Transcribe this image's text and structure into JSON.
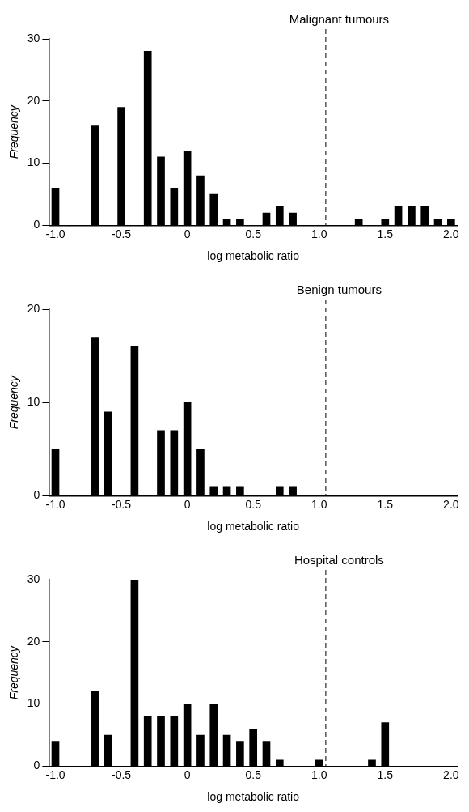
{
  "chart_data": [
    {
      "type": "bar",
      "title": "Malignant tumours",
      "xlabel": "log metabolic ratio",
      "ylabel": "Frequency",
      "x": [
        -1.0,
        -0.7,
        -0.5,
        -0.3,
        -0.2,
        -0.1,
        0,
        0.1,
        0.2,
        0.3,
        0.4,
        0.6,
        0.7,
        0.8,
        1.3,
        1.5,
        1.6,
        1.7,
        1.8,
        1.9,
        2.0
      ],
      "values": [
        6,
        16,
        19,
        28,
        11,
        6,
        12,
        8,
        5,
        1,
        1,
        2,
        3,
        2,
        1,
        1,
        3,
        3,
        3,
        1,
        1
      ],
      "color": "#000000",
      "xlim": [
        -1.05,
        2.05
      ],
      "xticks": [
        {
          "value": -1,
          "label": "-1.0"
        },
        -0.5,
        0,
        0.5,
        {
          "value": 1,
          "label": "1.0"
        },
        1.5,
        {
          "value": 2,
          "label": "2.0"
        }
      ],
      "ylim": [
        0,
        30
      ],
      "yticks": [
        0,
        10,
        20,
        30
      ],
      "grid": false,
      "ref_lines": [
        {
          "axis": "x",
          "value": 1.05,
          "line_style": "dashed",
          "color": "#000000"
        }
      ]
    },
    {
      "type": "bar",
      "title": "Benign tumours",
      "xlabel": "log metabolic ratio",
      "ylabel": "Frequency",
      "x": [
        -1.0,
        -0.7,
        -0.6,
        -0.4,
        -0.2,
        -0.1,
        0,
        0.1,
        0.2,
        0.3,
        0.4,
        0.7,
        0.8
      ],
      "values": [
        5,
        17,
        9,
        16,
        7,
        7,
        10,
        5,
        1,
        1,
        1,
        1,
        1
      ],
      "color": "#000000",
      "xlim": [
        -1.05,
        2.05
      ],
      "xticks": [
        {
          "value": -1,
          "label": "-1.0"
        },
        -0.5,
        0,
        0.5,
        {
          "value": 1,
          "label": "1.0"
        },
        1.5,
        {
          "value": 2,
          "label": "2.0"
        }
      ],
      "ylim": [
        0,
        20
      ],
      "yticks": [
        0,
        10,
        20
      ],
      "grid": false,
      "ref_lines": [
        {
          "axis": "x",
          "value": 1.05,
          "line_style": "dashed",
          "color": "#000000"
        }
      ]
    },
    {
      "type": "bar",
      "title": "Hospital controls",
      "xlabel": "log metabolic ratio",
      "ylabel": "Frequency",
      "x": [
        -1.0,
        -0.7,
        -0.6,
        -0.4,
        -0.3,
        -0.2,
        -0.1,
        0,
        0.1,
        0.2,
        0.3,
        0.4,
        0.5,
        0.6,
        0.7,
        1.0,
        1.4,
        1.5
      ],
      "values": [
        4,
        12,
        5,
        30,
        8,
        8,
        8,
        10,
        5,
        10,
        5,
        4,
        6,
        4,
        1,
        1,
        1,
        7
      ],
      "color": "#000000",
      "xlim": [
        -1.05,
        2.05
      ],
      "xticks": [
        {
          "value": -1,
          "label": "-1.0"
        },
        -0.5,
        0,
        0.5,
        {
          "value": 1,
          "label": "1.0"
        },
        1.5,
        {
          "value": 2,
          "label": "2.0"
        }
      ],
      "ylim": [
        0,
        30
      ],
      "yticks": [
        0,
        10,
        20,
        30
      ],
      "grid": false,
      "ref_lines": [
        {
          "axis": "x",
          "value": 1.05,
          "line_style": "dashed",
          "color": "#000000"
        }
      ]
    }
  ]
}
